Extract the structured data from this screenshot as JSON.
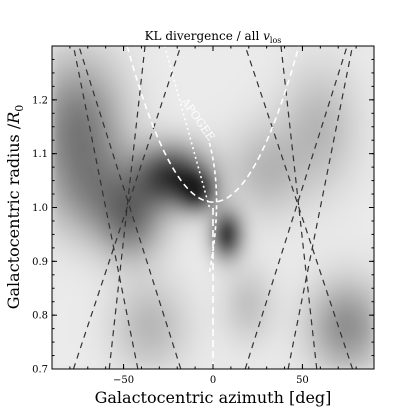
{
  "chart_data": {
    "type": "heatmap",
    "title": "KL divergence / all v_los",
    "xlabel": "Galactocentric azimuth [deg]",
    "ylabel": "Galactocentric radius /R_0",
    "xlim": [
      -90,
      90
    ],
    "ylim": [
      0.7,
      1.3
    ],
    "xticks": [
      -50,
      0,
      50
    ],
    "yticks": [
      0.7,
      0.8,
      0.9,
      1.0,
      1.1,
      1.2
    ],
    "grid": false,
    "colormap": "grayscale",
    "annotations": [
      {
        "text": "APOGEE",
        "x": -10,
        "y": 1.16
      }
    ],
    "dark_regions": [
      {
        "x": -22,
        "y": 1.06,
        "sx": 14,
        "sy": 0.04,
        "w": 0.85
      },
      {
        "x": -8,
        "y": 1.03,
        "sx": 7,
        "sy": 0.025,
        "w": 0.7
      },
      {
        "x": 8,
        "y": 0.95,
        "sx": 6,
        "sy": 0.03,
        "w": 0.9
      },
      {
        "x": -75,
        "y": 1.15,
        "sx": 18,
        "sy": 0.09,
        "w": 0.55
      },
      {
        "x": -60,
        "y": 1.02,
        "sx": 20,
        "sy": 0.06,
        "w": 0.35
      },
      {
        "x": -45,
        "y": 0.97,
        "sx": 12,
        "sy": 0.05,
        "w": 0.4
      },
      {
        "x": 75,
        "y": 0.78,
        "sx": 15,
        "sy": 0.06,
        "w": 0.45
      },
      {
        "x": 60,
        "y": 1.15,
        "sx": 15,
        "sy": 0.08,
        "w": 0.25
      },
      {
        "x": -35,
        "y": 0.78,
        "sx": 15,
        "sy": 0.06,
        "w": 0.25
      },
      {
        "x": 30,
        "y": 1.07,
        "sx": 15,
        "sy": 0.06,
        "w": 0.25
      },
      {
        "x": 20,
        "y": 0.82,
        "sx": 10,
        "sy": 0.05,
        "w": 0.2
      }
    ],
    "dashed_curves": [
      {
        "x_at_ylo": -78,
        "x_at_yhi": -18
      },
      {
        "x_at_ylo": -58,
        "x_at_yhi": -38
      },
      {
        "x_at_ylo": -42,
        "x_at_yhi": -78
      },
      {
        "x_at_ylo": -18,
        "x_at_yhi": -75
      },
      {
        "x_at_ylo": 18,
        "x_at_yhi": 75
      },
      {
        "x_at_ylo": 42,
        "x_at_yhi": 78
      },
      {
        "x_at_ylo": 58,
        "x_at_yhi": 38
      },
      {
        "x_at_ylo": 78,
        "x_at_yhi": 18
      }
    ]
  }
}
